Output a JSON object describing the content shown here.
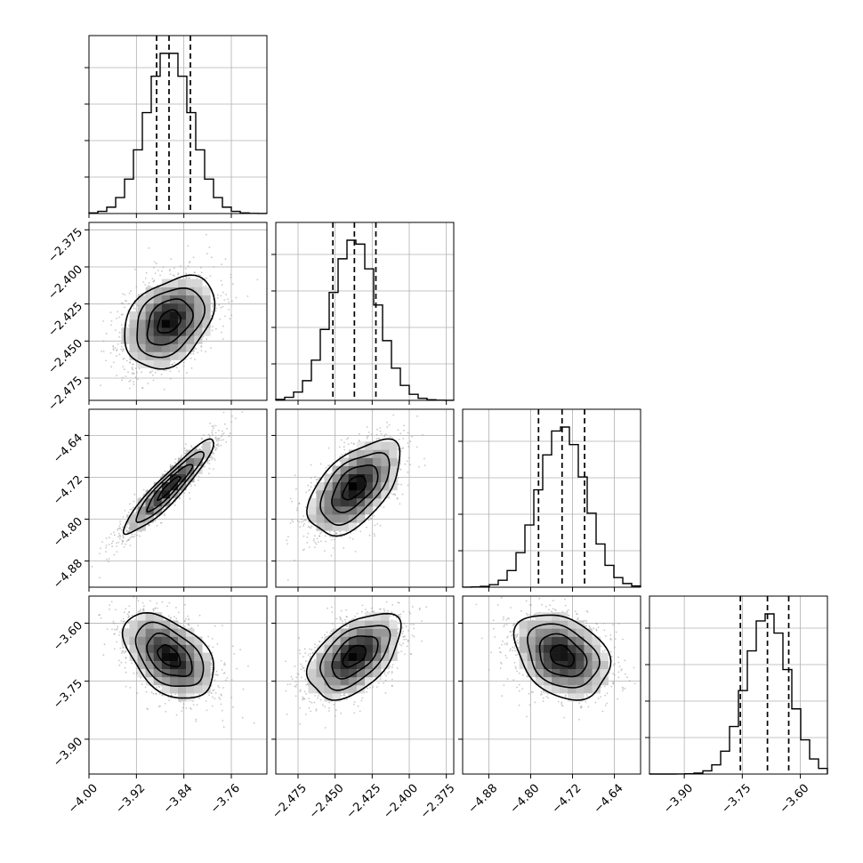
{
  "chart_data": {
    "type": "corner",
    "grid": true,
    "parameters": [
      {
        "mean": -3.865,
        "sd": 0.038,
        "range": [
          -4.0,
          -3.7
        ],
        "ticks": [
          -4.0,
          -3.92,
          -3.84,
          -3.76
        ],
        "tick_labels": [
          "−4.00",
          "−3.92",
          "−3.84",
          "−3.76"
        ],
        "quantiles": [
          -3.886,
          -3.865,
          -3.829
        ]
      },
      {
        "mean": -2.437,
        "sd": 0.0155,
        "range": [
          -2.49,
          -2.37
        ],
        "ticks": [
          -2.475,
          -2.45,
          -2.425,
          -2.4,
          -2.375
        ],
        "tick_labels": [
          "−2.475",
          "−2.450",
          "−2.425",
          "−2.400",
          "−2.375"
        ],
        "quantiles": [
          -2.4515,
          -2.437,
          -2.4225
        ]
      },
      {
        "mean": -4.74,
        "sd": 0.045,
        "range": [
          -4.93,
          -4.59
        ],
        "ticks": [
          -4.88,
          -4.8,
          -4.72,
          -4.64
        ],
        "tick_labels": [
          "−4.88",
          "−4.80",
          "−4.72",
          "−4.64"
        ],
        "quantiles": [
          -4.785,
          -4.74,
          -4.697
        ]
      },
      {
        "mean": -3.685,
        "sd": 0.055,
        "range": [
          -3.99,
          -3.53
        ],
        "ticks": [
          -3.9,
          -3.75,
          -3.6
        ],
        "tick_labels": [
          "−3.90",
          "−3.75",
          "−3.60"
        ],
        "quantiles": [
          -3.755,
          -3.685,
          -3.63
        ]
      }
    ],
    "correlations": [
      [
        1.0,
        0.35,
        0.93,
        -0.45
      ],
      [
        0.35,
        1.0,
        0.55,
        0.5
      ],
      [
        0.93,
        0.55,
        1.0,
        -0.3
      ],
      [
        -0.45,
        0.5,
        -0.3,
        1.0
      ]
    ]
  }
}
